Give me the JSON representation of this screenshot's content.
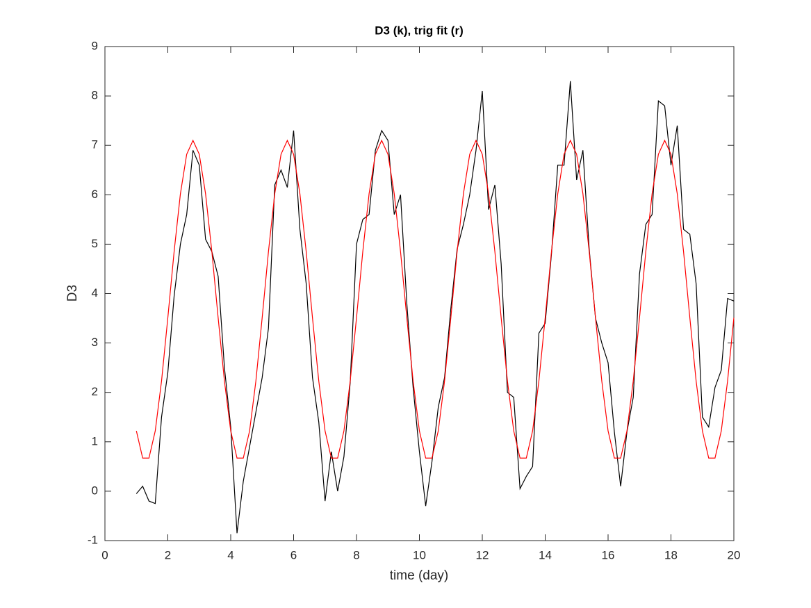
{
  "chart_data": {
    "type": "line",
    "title": "D3 (k), trig fit (r)",
    "x_label": "time (day)",
    "y_label": "D3",
    "x": [
      1,
      1.2,
      1.4,
      1.6,
      1.8,
      2,
      2.2,
      2.4,
      2.6,
      2.8,
      3,
      3.2,
      3.4,
      3.6,
      3.8,
      4,
      4.2,
      4.4,
      4.6,
      4.8,
      5,
      5.2,
      5.4,
      5.6,
      5.8,
      6,
      6.2,
      6.4,
      6.6,
      6.8,
      7,
      7.2,
      7.4,
      7.6,
      7.8,
      8,
      8.2,
      8.4,
      8.6,
      8.8,
      9,
      9.2,
      9.4,
      9.6,
      9.8,
      10,
      10.2,
      10.4,
      10.6,
      10.8,
      11,
      11.2,
      11.4,
      11.6,
      11.8,
      12,
      12.2,
      12.4,
      12.6,
      12.8,
      13,
      13.2,
      13.4,
      13.6,
      13.8,
      14,
      14.2,
      14.4,
      14.6,
      14.8,
      15,
      15.2,
      15.4,
      15.6,
      15.8,
      16,
      16.2,
      16.4,
      16.6,
      16.8,
      17,
      17.2,
      17.4,
      17.6,
      17.8,
      18,
      18.2,
      18.4,
      18.6,
      18.8,
      19,
      19.2,
      19.4,
      19.6,
      19.8,
      20
    ],
    "series": [
      {
        "color": "#000000",
        "values": [
          -0.05,
          0.1,
          -0.2,
          -0.25,
          1.5,
          2.4,
          3.95,
          5.0,
          5.6,
          6.9,
          6.6,
          5.1,
          4.85,
          4.35,
          2.5,
          1.3,
          -0.85,
          0.2,
          0.9,
          1.6,
          2.3,
          3.3,
          6.2,
          6.5,
          6.15,
          7.3,
          5.3,
          4.2,
          2.3,
          1.4,
          -0.2,
          0.8,
          0.0,
          0.7,
          2.2,
          5.0,
          5.5,
          5.6,
          6.9,
          7.3,
          7.1,
          5.6,
          6.0,
          3.8,
          2.1,
          0.8,
          -0.3,
          0.6,
          1.7,
          2.3,
          3.7,
          4.9,
          5.4,
          6.0,
          6.9,
          8.1,
          5.7,
          6.2,
          4.6,
          2.0,
          1.9,
          0.05,
          0.3,
          0.5,
          3.2,
          3.4,
          4.8,
          6.6,
          6.6,
          8.3,
          6.3,
          6.9,
          4.9,
          3.5,
          3.0,
          2.6,
          1.2,
          0.1,
          1.2,
          1.9,
          4.4,
          5.4,
          5.6,
          7.9,
          7.8,
          6.6,
          7.4,
          5.3,
          5.2,
          4.2,
          1.5,
          1.3,
          2.1,
          2.45,
          3.9,
          3.85
        ]
      },
      {
        "color": "#ff0000",
        "values": [
          1.22,
          0.67,
          0.67,
          1.22,
          2.23,
          3.51,
          4.85,
          6.02,
          6.82,
          7.1,
          6.82,
          6.02,
          4.85,
          3.51,
          2.23,
          1.22,
          0.67,
          0.67,
          1.22,
          2.23,
          3.51,
          4.85,
          6.02,
          6.82,
          7.1,
          6.82,
          6.02,
          4.85,
          3.51,
          2.23,
          1.22,
          0.67,
          0.67,
          1.22,
          2.23,
          3.51,
          4.85,
          6.02,
          6.82,
          7.1,
          6.82,
          6.02,
          4.85,
          3.51,
          2.23,
          1.22,
          0.67,
          0.67,
          1.22,
          2.23,
          3.51,
          4.85,
          6.02,
          6.82,
          7.1,
          6.82,
          6.02,
          4.85,
          3.51,
          2.23,
          1.22,
          0.67,
          0.67,
          1.22,
          2.23,
          3.51,
          4.85,
          6.02,
          6.82,
          7.1,
          6.82,
          6.02,
          4.85,
          3.51,
          2.23,
          1.22,
          0.67,
          0.67,
          1.22,
          2.23,
          3.51,
          4.85,
          6.02,
          6.82,
          7.1,
          6.82,
          6.02,
          4.85,
          3.51,
          2.23,
          1.22,
          0.67,
          0.67,
          1.22,
          2.23,
          3.51
        ]
      }
    ],
    "xlim": [
      0,
      20
    ],
    "xticks": [
      0,
      2,
      4,
      6,
      8,
      10,
      12,
      14,
      16,
      18,
      20
    ],
    "ylim": [
      -1,
      9
    ],
    "yticks": [
      -1,
      0,
      1,
      2,
      3,
      4,
      5,
      6,
      7,
      8,
      9
    ]
  }
}
